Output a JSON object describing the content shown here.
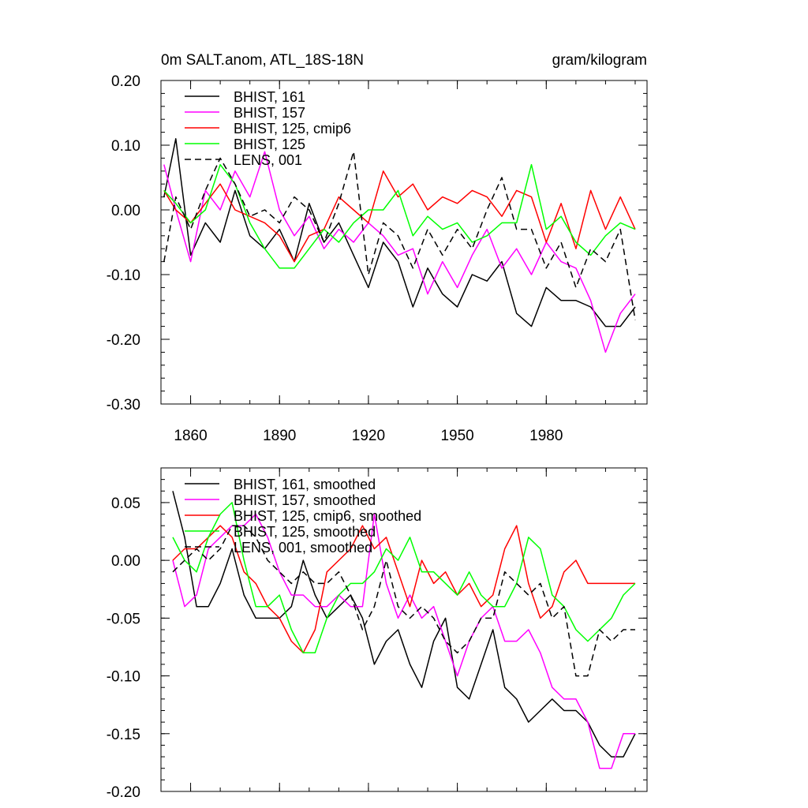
{
  "figure": {
    "title_left": "0m SALT.anom, ATL_18S-18N",
    "title_right": "gram/kilogram"
  },
  "colors": {
    "black": "#000000",
    "magenta": "#ff00ff",
    "red": "#ff0000",
    "green": "#00ff00"
  },
  "chart_data": [
    {
      "type": "line",
      "title": "0m SALT.anom, ATL_18S-18N",
      "units": "gram/kilogram",
      "xlim": [
        1850,
        2014
      ],
      "ylim": [
        -0.3,
        0.2
      ],
      "x_ticks": [
        1860,
        1890,
        1920,
        1950,
        1980
      ],
      "x_tick_labels": [
        "1860",
        "1890",
        "1920",
        "1950",
        "1980"
      ],
      "y_ticks": [
        -0.3,
        -0.2,
        -0.1,
        0.0,
        0.1,
        0.2
      ],
      "y_tick_labels": [
        "-0.30",
        "-0.20",
        "-0.10",
        "0.00",
        "0.10",
        "0.20"
      ],
      "legend_position": "top-left",
      "x": [
        1851,
        1855,
        1860,
        1865,
        1870,
        1875,
        1880,
        1885,
        1890,
        1895,
        1900,
        1905,
        1910,
        1915,
        1920,
        1925,
        1930,
        1935,
        1940,
        1945,
        1950,
        1955,
        1960,
        1965,
        1970,
        1975,
        1980,
        1985,
        1990,
        1995,
        2000,
        2005,
        2010
      ],
      "series": [
        {
          "name": "BHIST, 161",
          "color": "#000000",
          "dash": "solid",
          "values": [
            0.02,
            0.11,
            -0.07,
            -0.02,
            -0.05,
            0.03,
            -0.04,
            -0.06,
            -0.03,
            -0.08,
            0.01,
            -0.05,
            -0.02,
            -0.07,
            -0.12,
            -0.05,
            -0.08,
            -0.15,
            -0.09,
            -0.13,
            -0.15,
            -0.1,
            -0.11,
            -0.08,
            -0.16,
            -0.18,
            -0.12,
            -0.14,
            -0.14,
            -0.15,
            -0.18,
            -0.18,
            -0.15
          ]
        },
        {
          "name": "BHIST, 157",
          "color": "#ff00ff",
          "dash": "solid",
          "values": [
            0.07,
            0.0,
            -0.08,
            0.03,
            0.0,
            0.06,
            0.02,
            0.09,
            0.0,
            -0.04,
            -0.01,
            -0.06,
            -0.03,
            -0.05,
            -0.02,
            -0.04,
            -0.07,
            -0.06,
            -0.13,
            -0.08,
            -0.12,
            -0.07,
            -0.03,
            -0.09,
            -0.06,
            -0.1,
            -0.05,
            -0.08,
            -0.09,
            -0.14,
            -0.22,
            -0.16,
            -0.13
          ]
        },
        {
          "name": "BHIST, 125, cmip6",
          "color": "#ff0000",
          "dash": "solid",
          "values": [
            0.03,
            0.0,
            -0.02,
            0.01,
            0.04,
            0.0,
            -0.01,
            -0.02,
            -0.04,
            -0.08,
            -0.04,
            -0.03,
            0.02,
            0.0,
            -0.02,
            0.06,
            0.02,
            0.04,
            0.0,
            0.02,
            0.01,
            0.03,
            0.02,
            -0.01,
            0.03,
            0.02,
            -0.05,
            0.01,
            -0.06,
            0.03,
            -0.03,
            0.02,
            -0.03
          ]
        },
        {
          "name": "BHIST, 125",
          "color": "#00ff00",
          "dash": "solid",
          "values": [
            0.03,
            0.01,
            -0.02,
            0.0,
            0.07,
            0.04,
            -0.02,
            -0.06,
            -0.09,
            -0.09,
            -0.06,
            -0.03,
            -0.05,
            -0.02,
            0.0,
            0.0,
            0.03,
            -0.04,
            -0.01,
            -0.03,
            -0.02,
            -0.05,
            -0.04,
            -0.02,
            -0.02,
            0.07,
            -0.03,
            -0.01,
            -0.05,
            -0.07,
            -0.04,
            -0.02,
            -0.03
          ]
        },
        {
          "name": "LENS, 001",
          "color": "#000000",
          "dash": "dashed",
          "values": [
            -0.08,
            0.02,
            -0.03,
            0.03,
            0.08,
            0.04,
            -0.01,
            0.0,
            -0.02,
            0.02,
            0.0,
            -0.05,
            0.01,
            0.09,
            -0.1,
            -0.02,
            -0.04,
            -0.09,
            -0.03,
            -0.07,
            -0.03,
            -0.06,
            0.0,
            0.05,
            -0.03,
            -0.03,
            -0.09,
            -0.05,
            -0.12,
            -0.06,
            -0.08,
            -0.03,
            -0.17
          ]
        }
      ]
    },
    {
      "type": "line",
      "xlim": [
        1850,
        2014
      ],
      "ylim": [
        -0.2,
        0.08
      ],
      "y_ticks": [
        -0.2,
        -0.15,
        -0.1,
        -0.05,
        0.0,
        0.05
      ],
      "y_tick_labels": [
        "-0.20",
        "-0.15",
        "-0.10",
        "-0.05",
        "0.00",
        "0.05"
      ],
      "legend_position": "top-left",
      "x": [
        1854,
        1858,
        1862,
        1866,
        1870,
        1874,
        1878,
        1882,
        1886,
        1890,
        1894,
        1898,
        1902,
        1906,
        1910,
        1914,
        1918,
        1922,
        1926,
        1930,
        1934,
        1938,
        1942,
        1946,
        1950,
        1954,
        1958,
        1962,
        1966,
        1970,
        1974,
        1978,
        1982,
        1986,
        1990,
        1994,
        1998,
        2002,
        2006,
        2010
      ],
      "series": [
        {
          "name": "BHIST, 161, smoothed",
          "color": "#000000",
          "dash": "solid",
          "values": [
            0.06,
            0.02,
            -0.04,
            -0.04,
            -0.02,
            0.01,
            -0.03,
            -0.05,
            -0.05,
            -0.05,
            -0.04,
            0.0,
            -0.03,
            -0.05,
            -0.04,
            -0.03,
            -0.05,
            -0.09,
            -0.07,
            -0.06,
            -0.09,
            -0.11,
            -0.07,
            -0.05,
            -0.11,
            -0.12,
            -0.09,
            -0.06,
            -0.11,
            -0.12,
            -0.14,
            -0.13,
            -0.12,
            -0.13,
            -0.13,
            -0.14,
            -0.16,
            -0.17,
            -0.17,
            -0.15
          ]
        },
        {
          "name": "BHIST, 157, smoothed",
          "color": "#ff00ff",
          "dash": "solid",
          "values": [
            0.0,
            -0.04,
            -0.03,
            0.01,
            0.02,
            0.03,
            0.03,
            0.04,
            0.02,
            -0.01,
            -0.03,
            -0.03,
            -0.04,
            -0.04,
            -0.03,
            -0.04,
            -0.04,
            0.04,
            -0.02,
            -0.05,
            -0.03,
            -0.05,
            -0.04,
            -0.07,
            -0.1,
            -0.07,
            -0.05,
            -0.04,
            -0.07,
            -0.07,
            -0.06,
            -0.08,
            -0.11,
            -0.12,
            -0.12,
            -0.14,
            -0.18,
            -0.18,
            -0.15,
            -0.15
          ]
        },
        {
          "name": "BHIST, 125, cmip6, smoothed",
          "color": "#ff0000",
          "dash": "solid",
          "values": [
            0.0,
            0.01,
            0.01,
            0.02,
            0.03,
            0.02,
            -0.01,
            -0.02,
            -0.04,
            -0.05,
            -0.07,
            -0.08,
            -0.06,
            -0.01,
            0.0,
            0.01,
            0.03,
            0.01,
            0.02,
            -0.01,
            -0.04,
            0.0,
            -0.02,
            -0.01,
            -0.03,
            -0.02,
            -0.04,
            -0.03,
            0.01,
            0.03,
            -0.02,
            -0.05,
            -0.04,
            -0.01,
            0.0,
            -0.02,
            -0.02,
            -0.02,
            -0.02,
            -0.02
          ]
        },
        {
          "name": "BHIST, 125, smoothed",
          "color": "#00ff00",
          "dash": "solid",
          "values": [
            0.02,
            0.0,
            -0.01,
            0.02,
            0.04,
            0.05,
            0.0,
            -0.04,
            -0.04,
            -0.03,
            -0.06,
            -0.08,
            -0.08,
            -0.05,
            -0.03,
            -0.02,
            -0.02,
            -0.01,
            0.01,
            0.0,
            0.02,
            -0.01,
            -0.01,
            -0.02,
            -0.03,
            -0.01,
            -0.03,
            -0.04,
            -0.04,
            -0.02,
            0.02,
            0.01,
            -0.03,
            -0.04,
            -0.06,
            -0.07,
            -0.06,
            -0.05,
            -0.03,
            -0.02
          ]
        },
        {
          "name": "LENS, 001, smoothed",
          "color": "#000000",
          "dash": "dashed",
          "values": [
            -0.01,
            0.0,
            0.01,
            0.0,
            0.01,
            0.03,
            0.03,
            0.02,
            0.0,
            -0.01,
            -0.02,
            -0.01,
            -0.02,
            -0.02,
            -0.01,
            -0.03,
            -0.06,
            -0.04,
            0.0,
            -0.04,
            -0.05,
            -0.04,
            -0.05,
            -0.07,
            -0.08,
            -0.07,
            -0.05,
            -0.05,
            -0.01,
            -0.02,
            -0.03,
            -0.02,
            -0.05,
            -0.04,
            -0.1,
            -0.1,
            -0.06,
            -0.07,
            -0.06,
            -0.06
          ]
        }
      ]
    }
  ]
}
